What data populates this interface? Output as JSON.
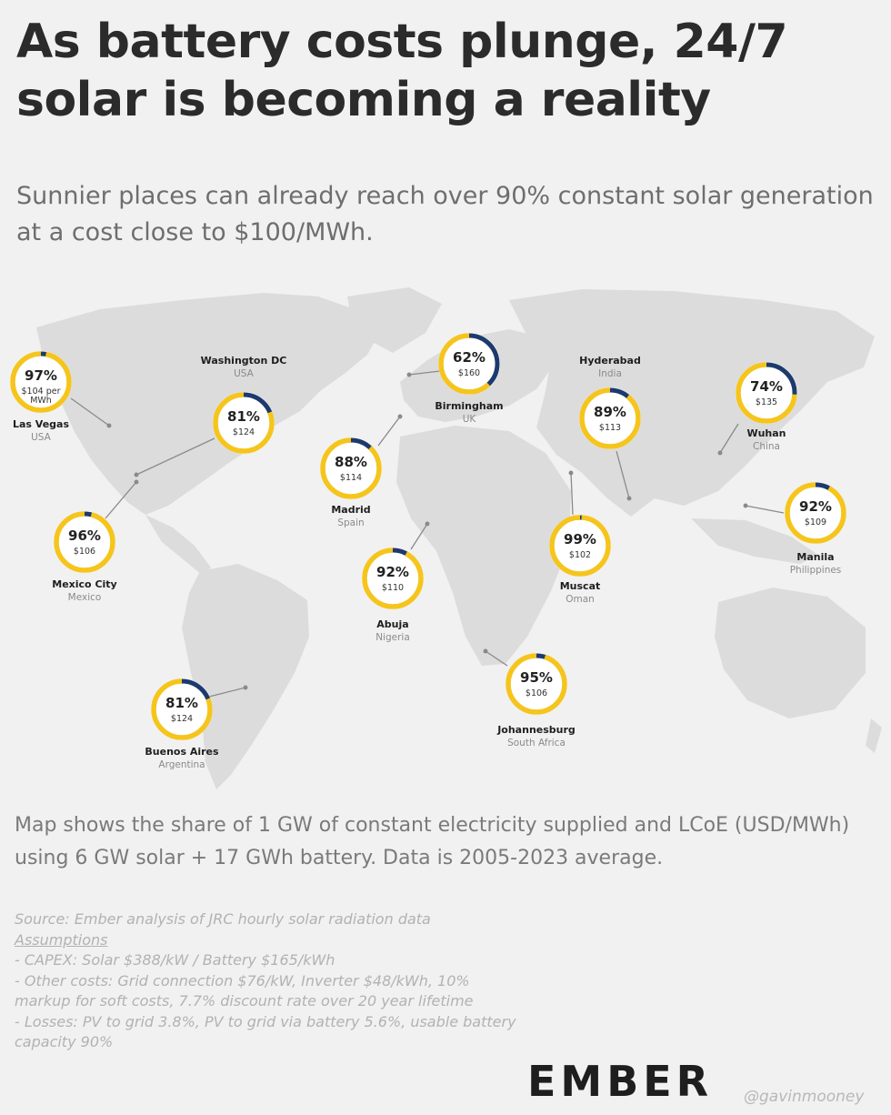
{
  "title": "As battery costs plunge, 24/7 solar is becoming a reality",
  "subtitle": "Sunnier places can already reach over 90% constant solar generation at a cost close to $100/MWh.",
  "caption": "Map shows the share of 1 GW of constant electricity supplied and LCoE (USD/MWh) using 6 GW solar + 17 GWh battery. Data is 2005-2023 average.",
  "notes": {
    "source": "Source: Ember analysis of JRC hourly solar radiation data",
    "assumptions_heading": "Assumptions",
    "lines": [
      "- CAPEX: Solar $388/kW / Battery $165/kWh",
      "- Other costs: Grid connection $76/kW, Inverter $48/kWh, 10% markup for soft costs, 7.7% discount rate over 20 year lifetime",
      "- Losses: PV to grid 3.8%, PV to grid via battery 5.6%, usable battery capacity 90%"
    ]
  },
  "logo": "EMBER",
  "handle": "@gavinmooney",
  "colors": {
    "ring": "#f6c51c",
    "ring_share": "#f6c51c",
    "ring_gap": "#1c3a6e",
    "land": "#dcdcdc",
    "background": "#f1f1f1"
  },
  "cities": [
    {
      "id": "las-vegas",
      "name": "Las Vegas",
      "country": "USA",
      "share": "97%",
      "cost": "$104 per MWh",
      "share_value": 97
    },
    {
      "id": "washington",
      "name": "Washington DC",
      "country": "USA",
      "share": "81%",
      "cost": "$124",
      "share_value": 81
    },
    {
      "id": "birmingham",
      "name": "Birmingham",
      "country": "UK",
      "share": "62%",
      "cost": "$160",
      "share_value": 62
    },
    {
      "id": "hyderabad",
      "name": "Hyderabad",
      "country": "India",
      "share": "89%",
      "cost": "$113",
      "share_value": 89
    },
    {
      "id": "wuhan",
      "name": "Wuhan",
      "country": "China",
      "share": "74%",
      "cost": "$135",
      "share_value": 74
    },
    {
      "id": "madrid",
      "name": "Madrid",
      "country": "Spain",
      "share": "88%",
      "cost": "$114",
      "share_value": 88
    },
    {
      "id": "mexico-city",
      "name": "Mexico City",
      "country": "Mexico",
      "share": "96%",
      "cost": "$106",
      "share_value": 96
    },
    {
      "id": "muscat",
      "name": "Muscat",
      "country": "Oman",
      "share": "99%",
      "cost": "$102",
      "share_value": 99
    },
    {
      "id": "manila",
      "name": "Manila",
      "country": "Philippines",
      "share": "92%",
      "cost": "$109",
      "share_value": 92
    },
    {
      "id": "abuja",
      "name": "Abuja",
      "country": "Nigeria",
      "share": "92%",
      "cost": "$110",
      "share_value": 92
    },
    {
      "id": "johannesburg",
      "name": "Johannesburg",
      "country": "South Africa",
      "share": "95%",
      "cost": "$106",
      "share_value": 95
    },
    {
      "id": "buenos-aires",
      "name": "Buenos Aires",
      "country": "Argentina",
      "share": "81%",
      "cost": "$124",
      "share_value": 81
    }
  ]
}
